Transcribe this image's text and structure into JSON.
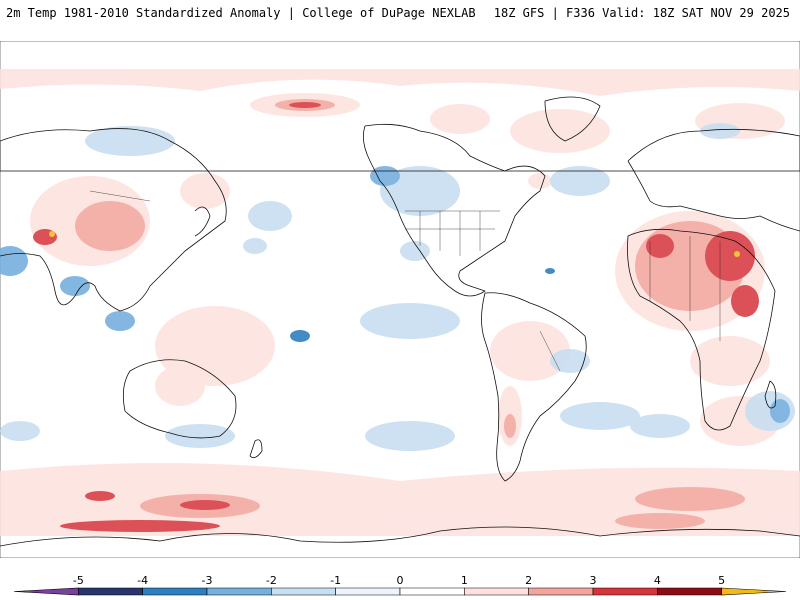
{
  "header": {
    "left": "2m Temp 1981-2010 Standardized Anomaly | College of DuPage NEXLAB",
    "right": "18Z GFS | F336 Valid: 18Z SAT NOV 29 2025"
  },
  "map": {
    "projection": "equirectangular",
    "ocean_color": "#ffffff",
    "coast_color": "#111111"
  },
  "legend": {
    "ticks": [
      "-5",
      "-4",
      "-3",
      "-2",
      "-1",
      "0",
      "1",
      "2",
      "3",
      "4",
      "5"
    ],
    "colors": [
      "#7b3fa0",
      "#27346e",
      "#2d7fc2",
      "#76b0df",
      "#c8def1",
      "#eef4fa",
      "#ffffff",
      "#fde1de",
      "#f3a49c",
      "#d7333a",
      "#8c0d18",
      "#f5b915"
    ]
  }
}
